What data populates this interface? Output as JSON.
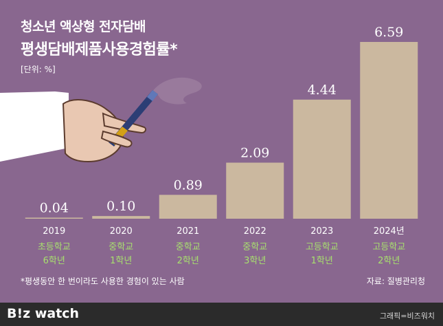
{
  "header": {
    "title_line1": "청소년 액상형 전자담배",
    "title_line2": "평생담배제품사용경험률*",
    "unit": "[단위: %]"
  },
  "footnote": "*평생동안 한 번이라도 사용한 경험이 있는 사람",
  "source": "자료: 질병관리청",
  "footer": {
    "logo": "B!z watch",
    "credit": "그래픽=비즈워치"
  },
  "colors": {
    "background": "#89678f",
    "bar": "#cbb89f",
    "axis_text": "#ffffff",
    "grade_text": "#a8e06e",
    "footer_bg": "#2b2b2b"
  },
  "chart_data": {
    "type": "bar",
    "title": "청소년 액상형 전자담배 평생담배제품사용경험률*",
    "ylabel": "[단위: %]",
    "categories": [
      "2019",
      "2020",
      "2021",
      "2022",
      "2023",
      "2024년"
    ],
    "sublabels": [
      [
        "초등학교",
        "6학년"
      ],
      [
        "중학교",
        "1학년"
      ],
      [
        "중학교",
        "2학년"
      ],
      [
        "중학교",
        "3학년"
      ],
      [
        "고등학교",
        "1학년"
      ],
      [
        "고등학교",
        "2학년"
      ]
    ],
    "values": [
      0.04,
      0.1,
      0.89,
      2.09,
      4.44,
      6.59
    ],
    "value_labels": [
      "0.04",
      "0.10",
      "0.89",
      "2.09",
      "4.44",
      "6.59"
    ],
    "ylim": [
      0,
      6.59
    ],
    "grid": false,
    "legend": "none"
  }
}
